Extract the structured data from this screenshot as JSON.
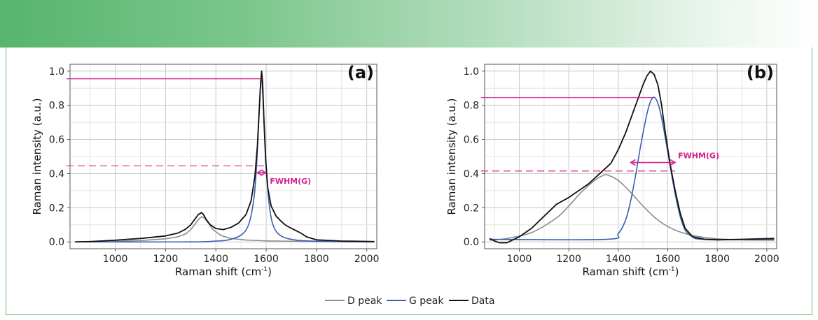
{
  "colors": {
    "d_peak": "#8c8c8c",
    "g_peak": "#3a5fb0",
    "data": "#111111",
    "annotation": "#d4218f",
    "grid": "#c8c8c8",
    "frame": "#5fbf74"
  },
  "legend": {
    "d_label": "D peak",
    "g_label": "G peak",
    "data_label": "Data"
  },
  "chart_data": [
    {
      "type": "line",
      "panel_label": "(a)",
      "xlabel_main": "Raman shift (cm",
      "xlabel_sup": "-1",
      "xlabel_end": ")",
      "ylabel": "Raman intensity (a.u.)",
      "xlim": [
        820,
        2040
      ],
      "ylim": [
        -0.04,
        1.04
      ],
      "xticks": [
        1000,
        1200,
        1400,
        1600,
        1800,
        2000
      ],
      "yticks": [
        0.0,
        0.2,
        0.4,
        0.6,
        0.8,
        1.0
      ],
      "xtick_labels": [
        "1000",
        "1200",
        "1400",
        "1600",
        "1800",
        "2000"
      ],
      "ytick_labels": [
        "0.0",
        "0.2",
        "0.4",
        "0.6",
        "0.8",
        "1.0"
      ],
      "annotation": {
        "text": "FWHM(G)",
        "peak_level": 0.955,
        "half_level": 0.445,
        "arrow_y": 0.405,
        "arrow_x": [
          1565,
          1598
        ]
      },
      "series": [
        {
          "name": "D peak",
          "x": [
            840,
            1000,
            1100,
            1200,
            1250,
            1280,
            1300,
            1320,
            1335,
            1345,
            1355,
            1370,
            1390,
            1420,
            1460,
            1520,
            1600,
            1700,
            1800,
            2030
          ],
          "y": [
            0.0,
            0.004,
            0.008,
            0.018,
            0.03,
            0.047,
            0.072,
            0.11,
            0.138,
            0.148,
            0.14,
            0.11,
            0.07,
            0.038,
            0.02,
            0.011,
            0.006,
            0.004,
            0.002,
            0.0
          ]
        },
        {
          "name": "G peak",
          "x": [
            840,
            1300,
            1400,
            1450,
            1500,
            1530,
            1550,
            1560,
            1568,
            1575,
            1581,
            1587,
            1595,
            1603,
            1612,
            1625,
            1650,
            1700,
            1800,
            2030
          ],
          "y": [
            0.0,
            0.0,
            0.005,
            0.012,
            0.04,
            0.1,
            0.24,
            0.4,
            0.62,
            0.85,
            0.96,
            0.85,
            0.6,
            0.38,
            0.22,
            0.11,
            0.045,
            0.015,
            0.004,
            0.0
          ],
          "smooth": true
        },
        {
          "name": "Data",
          "x": [
            840,
            900,
            1000,
            1100,
            1200,
            1250,
            1280,
            1300,
            1315,
            1330,
            1343,
            1350,
            1362,
            1378,
            1400,
            1430,
            1460,
            1490,
            1520,
            1540,
            1555,
            1565,
            1572,
            1578,
            1582,
            1586,
            1591,
            1598,
            1606,
            1620,
            1640,
            1660,
            1680,
            1700,
            1720,
            1740,
            1760,
            1800,
            1900,
            2030
          ],
          "y": [
            0.0,
            0.002,
            0.01,
            0.02,
            0.035,
            0.052,
            0.075,
            0.1,
            0.13,
            0.16,
            0.172,
            0.162,
            0.13,
            0.1,
            0.078,
            0.072,
            0.085,
            0.11,
            0.16,
            0.24,
            0.38,
            0.56,
            0.76,
            0.93,
            1.0,
            0.93,
            0.72,
            0.48,
            0.32,
            0.21,
            0.15,
            0.12,
            0.095,
            0.08,
            0.065,
            0.05,
            0.03,
            0.012,
            0.005,
            0.002
          ]
        }
      ]
    },
    {
      "type": "line",
      "panel_label": "(b)",
      "xlabel_main": "Raman shift (cm",
      "xlabel_sup": "-1",
      "xlabel_end": ")",
      "ylabel": "Raman intensity (a.u.)",
      "xlim": [
        860,
        2040
      ],
      "ylim": [
        -0.04,
        1.04
      ],
      "xticks": [
        1000,
        1200,
        1400,
        1600,
        1800,
        2000
      ],
      "yticks": [
        0.0,
        0.2,
        0.4,
        0.6,
        0.8,
        1.0
      ],
      "xtick_labels": [
        "1000",
        "1200",
        "1400",
        "1600",
        "1800",
        "2000"
      ],
      "ytick_labels": [
        "0.0",
        "0.2",
        "0.4",
        "0.6",
        "0.8",
        "1.0"
      ],
      "annotation": {
        "text": "FWHM(G)",
        "peak_level": 0.845,
        "half_level": 0.415,
        "arrow_y": 0.465,
        "arrow_x": [
          1450,
          1630
        ]
      },
      "series": [
        {
          "name": "D peak",
          "x": [
            880,
            950,
            1050,
            1150,
            1200,
            1250,
            1300,
            1340,
            1360,
            1400,
            1450,
            1500,
            1550,
            1600,
            1650,
            1700,
            1750,
            1800,
            1900,
            2030
          ],
          "y": [
            0.01,
            0.02,
            0.055,
            0.14,
            0.21,
            0.29,
            0.355,
            0.39,
            0.39,
            0.36,
            0.29,
            0.21,
            0.14,
            0.09,
            0.058,
            0.038,
            0.026,
            0.018,
            0.012,
            0.01
          ],
          "smooth": true
        },
        {
          "name": "G peak",
          "x": [
            880,
            1350,
            1400,
            1430,
            1450,
            1470,
            1490,
            1510,
            1525,
            1540,
            1555,
            1570,
            1590,
            1610,
            1630,
            1650,
            1670,
            1700,
            1750,
            2030
          ],
          "y": [
            0.015,
            0.015,
            0.05,
            0.13,
            0.24,
            0.39,
            0.56,
            0.71,
            0.8,
            0.845,
            0.83,
            0.76,
            0.61,
            0.44,
            0.28,
            0.15,
            0.07,
            0.03,
            0.015,
            0.015
          ],
          "smooth": true
        },
        {
          "name": "Data",
          "x": [
            880,
            900,
            920,
            950,
            1000,
            1050,
            1100,
            1150,
            1200,
            1250,
            1280,
            1310,
            1340,
            1370,
            1400,
            1430,
            1460,
            1480,
            1500,
            1515,
            1530,
            1545,
            1560,
            1575,
            1590,
            1610,
            1630,
            1650,
            1670,
            1700,
            1750,
            1800,
            1900,
            2030
          ],
          "y": [
            0.02,
            0.005,
            -0.005,
            -0.005,
            0.03,
            0.08,
            0.15,
            0.22,
            0.26,
            0.31,
            0.34,
            0.38,
            0.42,
            0.46,
            0.54,
            0.64,
            0.76,
            0.84,
            0.92,
            0.97,
            1.0,
            0.98,
            0.92,
            0.8,
            0.64,
            0.45,
            0.3,
            0.17,
            0.08,
            0.03,
            0.015,
            0.012,
            0.015,
            0.02
          ]
        }
      ]
    }
  ]
}
